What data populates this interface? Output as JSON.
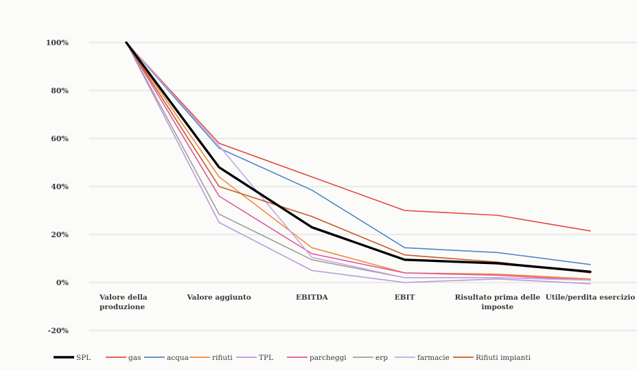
{
  "chart_data": {
    "type": "line",
    "title": "",
    "xlabel": "",
    "ylabel": "",
    "categories": [
      [
        "Valore della",
        "produzione"
      ],
      [
        "Valore aggiunto"
      ],
      [
        "EBITDA"
      ],
      [
        "EBIT"
      ],
      [
        "Risultato prima delle",
        "imposte"
      ],
      [
        "Utile/perdita esercizio"
      ]
    ],
    "ylim": [
      -20,
      100
    ],
    "yticks": [
      -20,
      0,
      20,
      40,
      60,
      80,
      100
    ],
    "ytick_labels": [
      "-20%",
      "0%",
      "20%",
      "40%",
      "60%",
      "80%",
      "100%"
    ],
    "grid": true,
    "legend_position": "bottom",
    "series": [
      {
        "name": "SPL",
        "color": "#000000",
        "bold": true,
        "values": [
          100,
          48,
          23,
          9.5,
          8,
          4.5
        ]
      },
      {
        "name": "gas",
        "color": "#e8463c",
        "values": [
          100,
          58,
          44,
          30,
          28,
          21.5
        ]
      },
      {
        "name": "acqua",
        "color": "#4f86c6",
        "values": [
          100,
          56,
          38.5,
          14.5,
          12.5,
          7.5
        ]
      },
      {
        "name": "rifiuti",
        "color": "#f08a3c",
        "values": [
          100,
          44,
          14.5,
          4,
          3.5,
          1.5
        ]
      },
      {
        "name": "TPL",
        "color": "#b99ad6",
        "values": [
          100,
          25,
          5,
          0,
          1.5,
          -0.5
        ]
      },
      {
        "name": "parcheggi",
        "color": "#e0559a",
        "values": [
          100,
          36,
          12,
          4,
          3,
          1
        ]
      },
      {
        "name": "erp",
        "color": "#9e9e9e",
        "values": [
          100,
          28.5,
          9.5,
          2,
          2,
          1
        ]
      },
      {
        "name": "farmacie",
        "color": "#c7a6df",
        "values": [
          100,
          57,
          10.5,
          2,
          2,
          1
        ]
      },
      {
        "name": "Rifiuti impianti",
        "color": "#c85a24",
        "values": [
          100,
          40,
          27.5,
          11.5,
          8.5,
          4
        ]
      }
    ]
  }
}
